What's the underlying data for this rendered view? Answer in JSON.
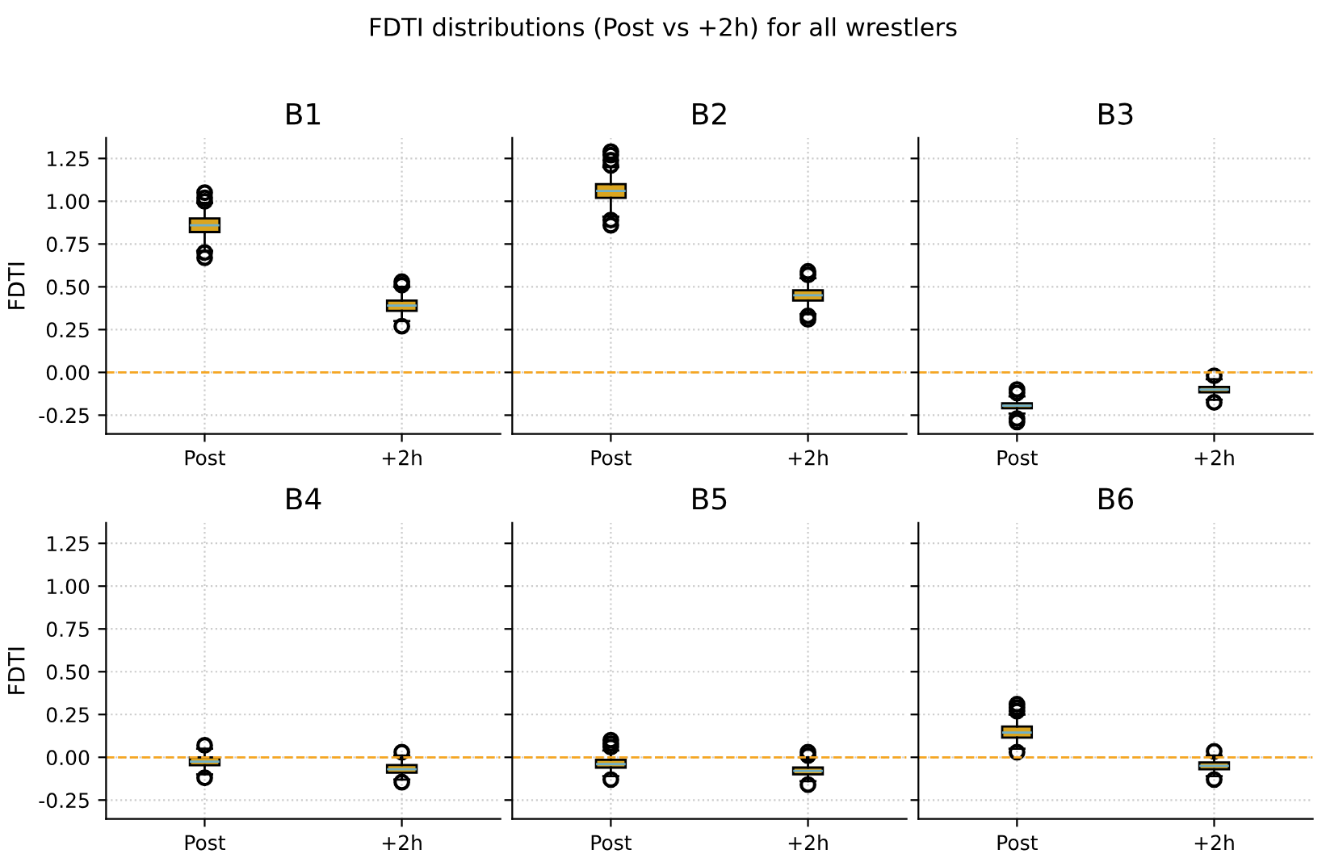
{
  "chart_data": [
    {
      "type": "box",
      "title": "B1",
      "ylabel": "FDTI",
      "categories": [
        "Post",
        "+2h"
      ],
      "ylim": [
        -0.36,
        1.37
      ],
      "yticks": [
        -0.25,
        {
          "value": 0,
          "label": "0.00"
        },
        0.25,
        {
          "value": 0.5,
          "label": "0.50"
        },
        0.75,
        {
          "value": 1,
          "label": "1.00"
        },
        1.25
      ],
      "grid": true,
      "annotations": [
        "FDTI distributions (Post vs +2h) for all wrestlers"
      ],
      "series": [
        {
          "color": "#daa520",
          "boxes": [
            {
              "low": 0.71,
              "q1": 0.82,
              "median": 0.86,
              "q3": 0.9,
              "high": 0.99,
              "outliers": [
                1.0,
                1.02,
                1.05,
                0.7,
                0.67
              ]
            },
            {
              "low": 0.3,
              "q1": 0.36,
              "median": 0.39,
              "q3": 0.42,
              "high": 0.5,
              "outliers": [
                0.51,
                0.53,
                0.27
              ]
            }
          ]
        }
      ],
      "ref_lines": [
        {
          "axis": "y",
          "value": 0,
          "color": "#f5a623",
          "line_style": "dashed"
        }
      ]
    },
    {
      "type": "box",
      "title": "B2",
      "categories": [
        "Post",
        "+2h"
      ],
      "ylim": [
        -0.36,
        1.37
      ],
      "yticks": [
        -0.25,
        0,
        0.25,
        0.5,
        0.75,
        1,
        1.25
      ],
      "grid": true,
      "tick_labels": "x",
      "series": [
        {
          "color": "#daa520",
          "boxes": [
            {
              "low": 0.91,
              "q1": 1.02,
              "median": 1.06,
              "q3": 1.1,
              "high": 1.2,
              "outliers": [
                1.21,
                1.24,
                1.27,
                1.29,
                0.89,
                0.86
              ]
            },
            {
              "low": 0.34,
              "q1": 0.42,
              "median": 0.45,
              "q3": 0.48,
              "high": 0.55,
              "outliers": [
                0.57,
                0.59,
                0.33,
                0.31
              ]
            }
          ]
        }
      ],
      "ref_lines": [
        {
          "axis": "y",
          "value": 0,
          "color": "#f5a623",
          "line_style": "dashed"
        }
      ]
    },
    {
      "type": "box",
      "title": "B3",
      "categories": [
        "Post",
        "+2h"
      ],
      "ylim": [
        -0.36,
        1.37
      ],
      "yticks": [
        -0.25,
        0,
        0.25,
        0.5,
        0.75,
        1,
        1.25
      ],
      "grid": true,
      "tick_labels": "x",
      "series": [
        {
          "color": "#daa520",
          "boxes": [
            {
              "low": -0.24,
              "q1": -0.21,
              "median": -0.195,
              "q3": -0.18,
              "high": -0.14,
              "outliers": [
                -0.1,
                -0.12,
                -0.27,
                -0.29
              ]
            },
            {
              "low": -0.16,
              "q1": -0.117,
              "median": -0.1,
              "q3": -0.085,
              "high": -0.04,
              "outliers": [
                -0.02,
                -0.175
              ]
            }
          ]
        }
      ],
      "ref_lines": [
        {
          "axis": "y",
          "value": 0,
          "color": "#f5a623",
          "line_style": "dashed"
        }
      ]
    },
    {
      "type": "box",
      "title": "B4",
      "ylabel": "FDTI",
      "categories": [
        "Post",
        "+2h"
      ],
      "ylim": [
        -0.36,
        1.37
      ],
      "yticks": [
        -0.25,
        {
          "value": 0,
          "label": "0.00"
        },
        0.25,
        {
          "value": 0.5,
          "label": "0.50"
        },
        0.75,
        {
          "value": 1,
          "label": "1.00"
        },
        1.25
      ],
      "grid": true,
      "series": [
        {
          "color": "#daa520",
          "boxes": [
            {
              "low": -0.1,
              "q1": -0.046,
              "median": -0.025,
              "q3": 0.0,
              "high": 0.05,
              "outliers": [
                0.07,
                -0.12
              ]
            },
            {
              "low": -0.13,
              "q1": -0.09,
              "median": -0.07,
              "q3": -0.045,
              "high": 0.01,
              "outliers": [
                0.03,
                -0.145
              ]
            }
          ]
        }
      ],
      "ref_lines": [
        {
          "axis": "y",
          "value": 0,
          "color": "#f5a623",
          "line_style": "dashed"
        }
      ]
    },
    {
      "type": "box",
      "title": "B5",
      "categories": [
        "Post",
        "+2h"
      ],
      "ylim": [
        -0.36,
        1.37
      ],
      "yticks": [
        -0.25,
        0,
        0.25,
        0.5,
        0.75,
        1,
        1.25
      ],
      "grid": true,
      "tick_labels": "x",
      "series": [
        {
          "color": "#daa520",
          "boxes": [
            {
              "low": -0.11,
              "q1": -0.06,
              "median": -0.04,
              "q3": -0.015,
              "high": 0.04,
              "outliers": [
                0.06,
                0.08,
                0.1,
                -0.13
              ]
            },
            {
              "low": -0.14,
              "q1": -0.1,
              "median": -0.08,
              "q3": -0.06,
              "high": 0.0,
              "outliers": [
                0.01,
                0.03,
                -0.16
              ]
            }
          ]
        }
      ],
      "ref_lines": [
        {
          "axis": "y",
          "value": 0,
          "color": "#f5a623",
          "line_style": "dashed"
        }
      ]
    },
    {
      "type": "box",
      "title": "B6",
      "categories": [
        "Post",
        "+2h"
      ],
      "ylim": [
        -0.36,
        1.37
      ],
      "yticks": [
        -0.25,
        0,
        0.25,
        0.5,
        0.75,
        1,
        1.25
      ],
      "grid": true,
      "tick_labels": "x",
      "series": [
        {
          "color": "#daa520",
          "boxes": [
            {
              "low": 0.05,
              "q1": 0.115,
              "median": 0.145,
              "q3": 0.18,
              "high": 0.25,
              "outliers": [
                0.27,
                0.29,
                0.31,
                0.03
              ]
            },
            {
              "low": -0.11,
              "q1": -0.07,
              "median": -0.05,
              "q3": -0.03,
              "high": 0.01,
              "outliers": [
                0.035,
                -0.13
              ]
            }
          ]
        }
      ],
      "ref_lines": [
        {
          "axis": "y",
          "value": 0,
          "color": "#f5a623",
          "line_style": "dashed"
        }
      ]
    }
  ]
}
